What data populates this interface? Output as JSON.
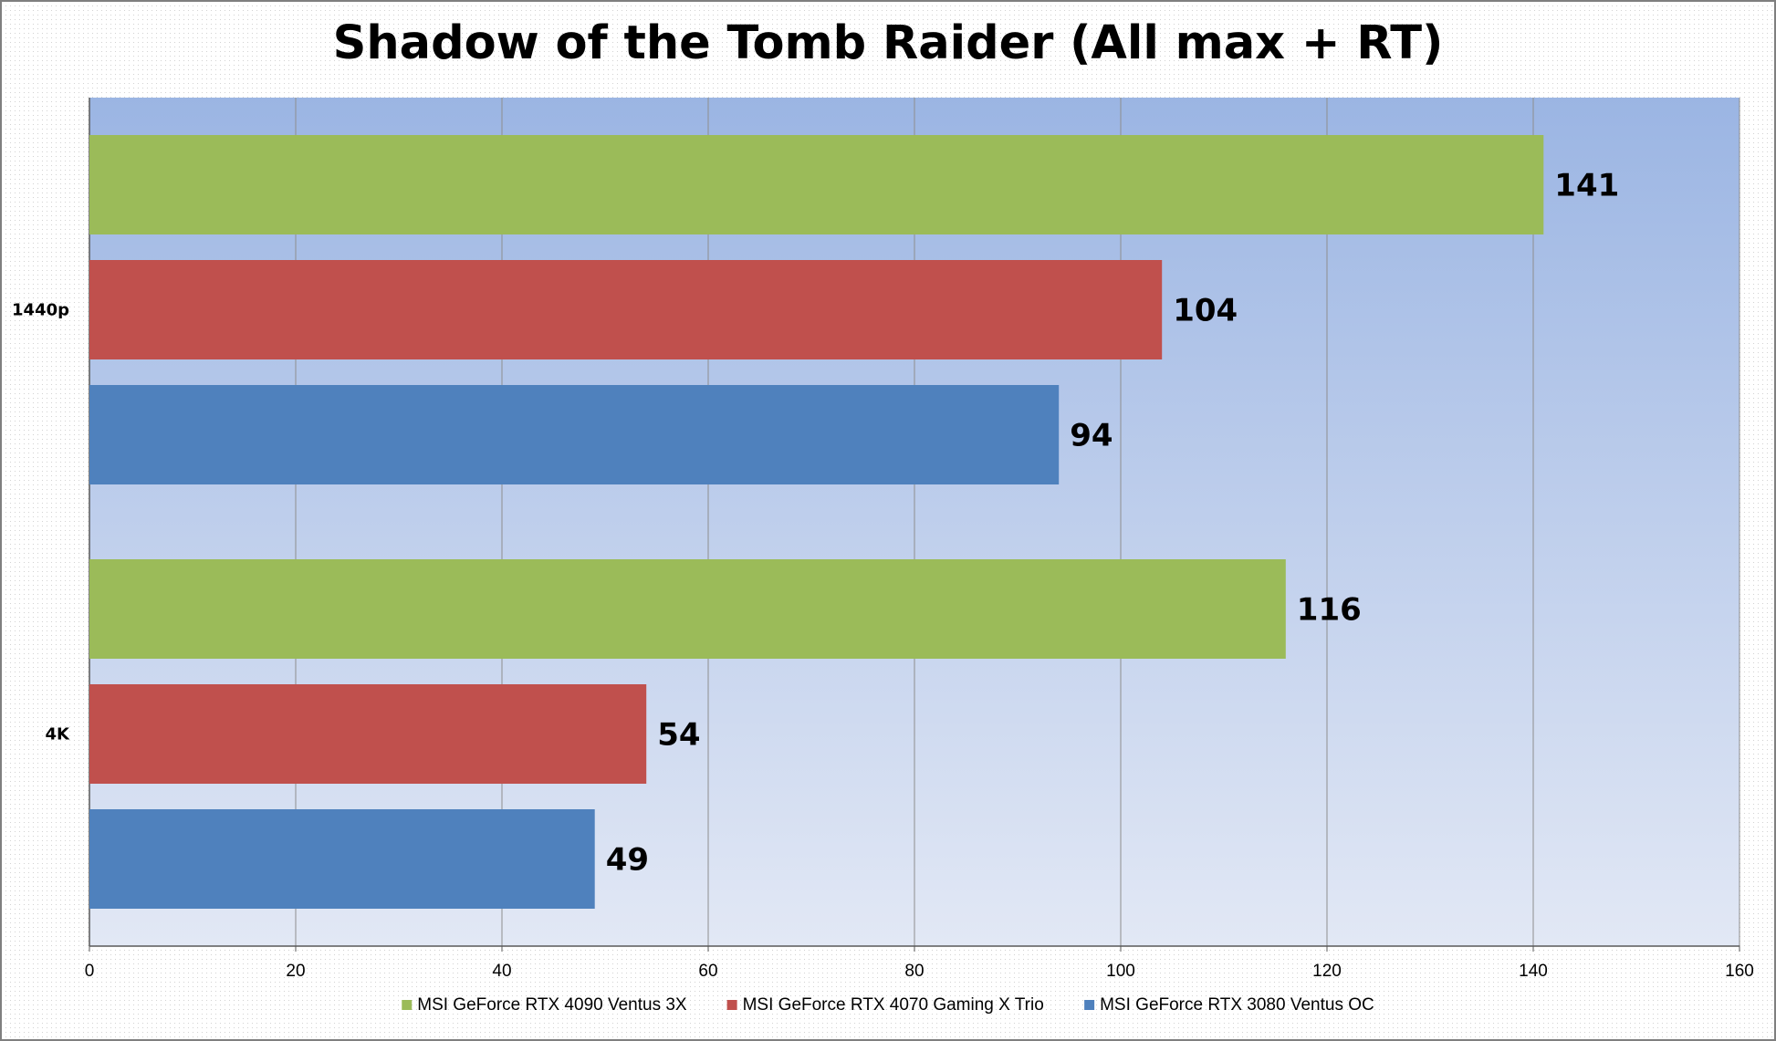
{
  "chart_data": {
    "type": "bar",
    "orientation": "horizontal",
    "title": "Shadow of the Tomb Raider (All max + RT)",
    "xlabel": "",
    "ylabel": "",
    "categories": [
      "1440p",
      "4K"
    ],
    "series": [
      {
        "name": "MSI GeForce RTX 4090 Ventus 3X",
        "color": "#9bbb59",
        "values": [
          141,
          116
        ]
      },
      {
        "name": "MSI GeForce RTX 4070 Gaming X Trio",
        "color": "#c0504d",
        "values": [
          104,
          54
        ]
      },
      {
        "name": "MSI GeForce RTX 3080 Ventus OC",
        "color": "#4f81bd",
        "values": [
          94,
          49
        ]
      }
    ],
    "xlim": [
      0,
      160
    ],
    "xticks": [
      0,
      20,
      40,
      60,
      80,
      100,
      120,
      140,
      160
    ],
    "grid": true,
    "data_labels": true,
    "legend_position": "bottom",
    "plot_background": "gradient light-blue"
  }
}
